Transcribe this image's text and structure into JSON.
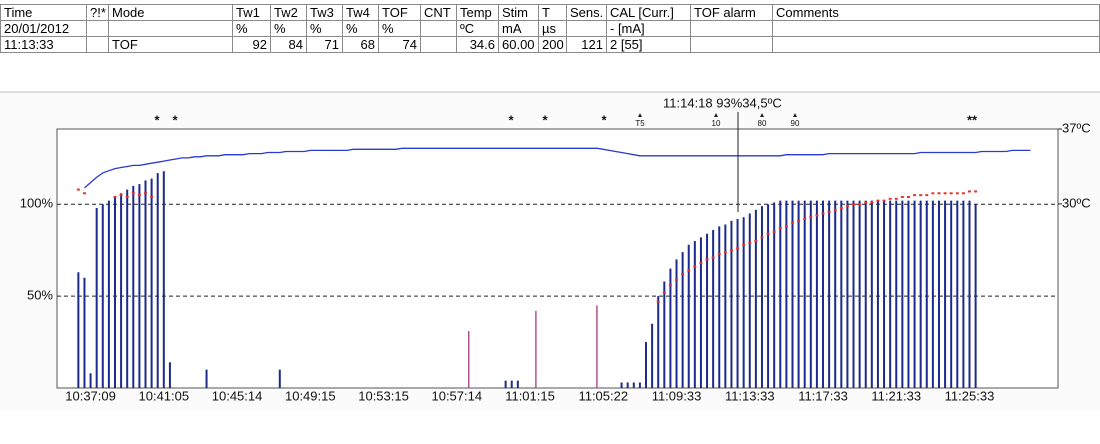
{
  "table": {
    "header": [
      "Time",
      "?!*",
      "Mode",
      "Tw1",
      "Tw2",
      "Tw3",
      "Tw4",
      "TOF",
      "CNT",
      "Temp",
      "Stim",
      "T",
      "Sens.",
      "CAL [Curr.]",
      "TOF alarm",
      "Comments"
    ],
    "rows": [
      [
        "20/01/2012",
        null,
        null,
        "%",
        "%",
        "%",
        "%",
        "%",
        null,
        "ºC",
        "mA",
        "µs",
        null,
        "- [mA]",
        null,
        null
      ],
      [
        "11:13:33",
        null,
        "TOF",
        92,
        84,
        71,
        68,
        74,
        null,
        34.6,
        "60.00",
        200,
        121,
        "2 [55]",
        null,
        null
      ]
    ]
  },
  "chart_data": {
    "type": "bar",
    "categories": [
      null,
      null,
      null,
      null,
      null,
      "10:37:09",
      null,
      null,
      null,
      null,
      null,
      null,
      null,
      null,
      null,
      null,
      null,
      "10:41:05",
      null,
      null,
      null,
      null,
      null,
      null,
      null,
      null,
      null,
      null,
      null,
      "10:45:14",
      null,
      null,
      null,
      null,
      null,
      null,
      null,
      null,
      null,
      null,
      null,
      "10:49:15",
      null,
      null,
      null,
      null,
      null,
      null,
      null,
      null,
      null,
      null,
      null,
      "10:53:15",
      null,
      null,
      null,
      null,
      null,
      null,
      null,
      null,
      null,
      null,
      null,
      "10:57:14",
      null,
      null,
      null,
      null,
      null,
      null,
      null,
      null,
      null,
      null,
      null,
      "11:01:15",
      null,
      null,
      null,
      null,
      null,
      null,
      null,
      null,
      null,
      null,
      null,
      "11:05:22",
      null,
      null,
      null,
      null,
      null,
      null,
      null,
      null,
      null,
      null,
      null,
      "11:09:33",
      null,
      null,
      null,
      null,
      null,
      null,
      null,
      null,
      null,
      null,
      null,
      "11:13:33",
      null,
      null,
      null,
      null,
      null,
      null,
      null,
      null,
      null,
      null,
      null,
      "11:17:33",
      null,
      null,
      null,
      null,
      null,
      null,
      null,
      null,
      null,
      null,
      null,
      "11:21:33",
      null,
      null,
      null,
      null,
      null,
      null,
      null,
      null,
      null,
      null,
      null,
      "11:25:33",
      null,
      null,
      null,
      null,
      null,
      null,
      null,
      null,
      null,
      null,
      null,
      null,
      null,
      null
    ],
    "series": [
      {
        "color": "#1c2a8c",
        "values": [
          null,
          null,
          null,
          63,
          60,
          8,
          98,
          100,
          102,
          104,
          106,
          108,
          110,
          111,
          113,
          114,
          117,
          118,
          14,
          null,
          null,
          null,
          null,
          null,
          10,
          null,
          null,
          null,
          null,
          null,
          null,
          null,
          null,
          null,
          null,
          null,
          10,
          null,
          null,
          null,
          null,
          null,
          null,
          null,
          null,
          null,
          null,
          null,
          null,
          null,
          null,
          null,
          null,
          null,
          null,
          null,
          null,
          null,
          null,
          null,
          null,
          null,
          null,
          null,
          null,
          null,
          null,
          null,
          null,
          null,
          null,
          null,
          null,
          4,
          4,
          4,
          null,
          null,
          null,
          null,
          null,
          null,
          null,
          null,
          null,
          null,
          null,
          null,
          null,
          null,
          null,
          null,
          3,
          3,
          3,
          3,
          25,
          35,
          50,
          58,
          65,
          70,
          74,
          78,
          80,
          82,
          84,
          86,
          88,
          89,
          91,
          92,
          93,
          95,
          97,
          99,
          100,
          101,
          102,
          102,
          102,
          102,
          102,
          102,
          102,
          102,
          102,
          102,
          102,
          102,
          102,
          102,
          102,
          102,
          102,
          102,
          102,
          102,
          102,
          102,
          102,
          102,
          102,
          102,
          102,
          102,
          102,
          102,
          102,
          102,
          100,
          null,
          null,
          null,
          null,
          null,
          null,
          null,
          null,
          null,
          null,
          null,
          null,
          null
        ]
      },
      {
        "color": "#a8347e",
        "values": [
          null,
          null,
          null,
          null,
          null,
          null,
          null,
          null,
          null,
          null,
          null,
          null,
          null,
          null,
          null,
          null,
          null,
          null,
          null,
          null,
          null,
          null,
          null,
          null,
          null,
          null,
          null,
          null,
          null,
          null,
          null,
          null,
          null,
          null,
          null,
          null,
          null,
          null,
          null,
          null,
          null,
          null,
          null,
          null,
          null,
          null,
          null,
          null,
          null,
          null,
          null,
          null,
          null,
          null,
          null,
          null,
          null,
          null,
          null,
          null,
          null,
          null,
          null,
          null,
          null,
          null,
          null,
          31,
          null,
          null,
          null,
          null,
          null,
          null,
          null,
          null,
          null,
          null,
          42,
          null,
          null,
          null,
          null,
          null,
          null,
          null,
          null,
          null,
          45,
          null,
          null,
          null,
          null,
          null,
          null,
          null,
          null,
          null,
          null,
          null,
          null,
          null,
          null,
          null,
          null,
          null,
          null,
          null,
          null,
          null,
          null,
          null,
          null,
          null,
          null,
          null,
          null,
          null,
          null,
          null,
          null,
          null,
          null,
          null,
          null,
          null,
          null,
          null,
          null,
          null,
          null,
          null,
          null,
          null,
          null,
          null,
          null,
          null,
          null,
          null,
          null,
          null,
          null,
          null,
          null,
          null,
          null,
          null,
          null,
          null,
          null,
          null,
          null,
          null,
          null,
          null,
          null,
          null,
          null,
          null,
          null,
          null,
          null,
          null
        ]
      },
      {
        "color": "#e8322a",
        "values": [
          null,
          null,
          null,
          108,
          106,
          null,
          null,
          null,
          null,
          104,
          105,
          104,
          106,
          105,
          106,
          104,
          null,
          null,
          null,
          null,
          null,
          null,
          null,
          null,
          null,
          null,
          null,
          null,
          null,
          null,
          null,
          null,
          null,
          null,
          null,
          null,
          null,
          null,
          null,
          null,
          null,
          null,
          null,
          null,
          null,
          null,
          null,
          null,
          null,
          null,
          null,
          null,
          null,
          null,
          null,
          null,
          null,
          null,
          null,
          null,
          null,
          null,
          null,
          null,
          null,
          null,
          null,
          null,
          null,
          null,
          null,
          null,
          null,
          null,
          null,
          null,
          null,
          null,
          null,
          null,
          null,
          null,
          null,
          null,
          null,
          null,
          null,
          null,
          null,
          null,
          null,
          null,
          null,
          null,
          null,
          null,
          null,
          null,
          47,
          52,
          56,
          59,
          62,
          64,
          66,
          68,
          70,
          71,
          73,
          74,
          75,
          76,
          78,
          79,
          80,
          82,
          84,
          85,
          87,
          88,
          90,
          91,
          92,
          93,
          94,
          95,
          96,
          97,
          98,
          99,
          100,
          100,
          101,
          101,
          102,
          102,
          103,
          103,
          104,
          104,
          105,
          105,
          105,
          106,
          106,
          106,
          106,
          106,
          106,
          107,
          107,
          null,
          null,
          null,
          null,
          null,
          null,
          null,
          null,
          null,
          null,
          null,
          null,
          null
        ]
      },
      {
        "color": "#2a3acc",
        "axis": "y2",
        "values": [
          null,
          null,
          null,
          null,
          31.5,
          32.0,
          32.5,
          32.9,
          33.1,
          33.3,
          33.4,
          33.5,
          33.6,
          33.6,
          33.7,
          33.8,
          33.9,
          34.0,
          34.1,
          34.2,
          34.3,
          34.3,
          34.4,
          34.4,
          34.5,
          34.5,
          34.5,
          34.6,
          34.6,
          34.6,
          34.6,
          34.7,
          34.7,
          34.7,
          34.8,
          34.8,
          34.8,
          34.9,
          34.9,
          34.9,
          34.9,
          35.0,
          35.0,
          35.0,
          35.0,
          35.0,
          35.0,
          35.0,
          35.1,
          35.1,
          35.1,
          35.1,
          35.1,
          35.1,
          35.1,
          35.1,
          35.2,
          35.2,
          35.2,
          35.2,
          35.2,
          35.2,
          35.2,
          35.2,
          35.2,
          35.2,
          35.2,
          35.2,
          35.2,
          35.2,
          35.2,
          35.2,
          35.2,
          35.2,
          35.2,
          35.2,
          35.2,
          35.2,
          35.2,
          35.2,
          35.2,
          35.2,
          35.2,
          35.2,
          35.2,
          35.2,
          35.2,
          35.2,
          35.2,
          35.1,
          35.0,
          34.9,
          34.8,
          34.7,
          34.6,
          34.5,
          34.5,
          34.5,
          34.5,
          34.5,
          34.5,
          34.5,
          34.5,
          34.5,
          34.5,
          34.5,
          34.5,
          34.5,
          34.5,
          34.5,
          34.5,
          34.5,
          34.5,
          34.5,
          34.5,
          34.5,
          34.5,
          34.5,
          34.5,
          34.6,
          34.6,
          34.6,
          34.6,
          34.6,
          34.6,
          34.6,
          34.7,
          34.7,
          34.7,
          34.7,
          34.7,
          34.7,
          34.7,
          34.7,
          34.7,
          34.7,
          34.7,
          34.7,
          34.7,
          34.7,
          34.7,
          34.8,
          34.8,
          34.8,
          34.8,
          34.8,
          34.8,
          34.8,
          34.8,
          34.8,
          34.8,
          34.9,
          34.9,
          34.9,
          34.9,
          34.9,
          35.0,
          35.0,
          35.0,
          35.0,
          null,
          null,
          null,
          null
        ]
      }
    ],
    "ylim": [
      0,
      141
    ],
    "yticks": [
      {
        "value": 50,
        "label": "50%"
      },
      {
        "value": 100,
        "label": "100%"
      }
    ],
    "y2lim": [
      12.8,
      37
    ],
    "y2ticks": [
      {
        "value": 30,
        "label": "30ºC"
      },
      {
        "value": 37,
        "label": "37ºC"
      }
    ],
    "grid": true,
    "markers": [
      "*",
      "*",
      "*",
      "*",
      "*",
      "T5",
      "10",
      "80",
      "90",
      "**"
    ],
    "cursor_label": "11:14:18 93%34,5ºC"
  }
}
